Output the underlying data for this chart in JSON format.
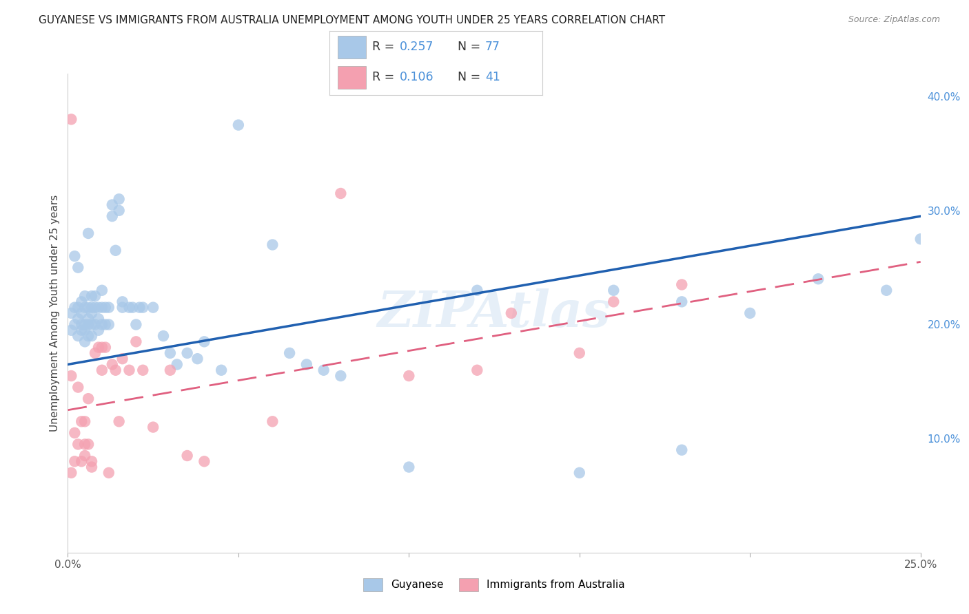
{
  "title": "GUYANESE VS IMMIGRANTS FROM AUSTRALIA UNEMPLOYMENT AMONG YOUTH UNDER 25 YEARS CORRELATION CHART",
  "source": "Source: ZipAtlas.com",
  "ylabel": "Unemployment Among Youth under 25 years",
  "xmin": 0.0,
  "xmax": 0.25,
  "ymin": 0.0,
  "ymax": 0.42,
  "legend_r1_val": "0.257",
  "legend_n1_val": "77",
  "legend_r2_val": "0.106",
  "legend_n2_val": "41",
  "blue_color": "#a8c8e8",
  "pink_color": "#f4a0b0",
  "blue_line_color": "#2060b0",
  "pink_line_color": "#e06080",
  "watermark": "ZIPAtlas",
  "background_color": "#ffffff",
  "grid_color": "#d8d8d8",
  "blue_intercept": 0.165,
  "blue_slope": 0.52,
  "pink_intercept": 0.125,
  "pink_slope": 0.52,
  "guyanese_x": [
    0.001,
    0.001,
    0.002,
    0.002,
    0.002,
    0.003,
    0.003,
    0.003,
    0.003,
    0.004,
    0.004,
    0.004,
    0.004,
    0.005,
    0.005,
    0.005,
    0.005,
    0.005,
    0.006,
    0.006,
    0.006,
    0.006,
    0.006,
    0.007,
    0.007,
    0.007,
    0.007,
    0.007,
    0.008,
    0.008,
    0.008,
    0.009,
    0.009,
    0.009,
    0.01,
    0.01,
    0.01,
    0.011,
    0.011,
    0.012,
    0.012,
    0.013,
    0.013,
    0.014,
    0.015,
    0.015,
    0.016,
    0.016,
    0.018,
    0.019,
    0.02,
    0.021,
    0.022,
    0.025,
    0.028,
    0.03,
    0.032,
    0.035,
    0.038,
    0.04,
    0.045,
    0.05,
    0.06,
    0.065,
    0.07,
    0.075,
    0.08,
    0.1,
    0.12,
    0.15,
    0.16,
    0.18,
    0.2,
    0.22,
    0.24,
    0.25,
    0.18
  ],
  "guyanese_y": [
    0.195,
    0.21,
    0.2,
    0.215,
    0.26,
    0.19,
    0.205,
    0.215,
    0.25,
    0.195,
    0.2,
    0.21,
    0.22,
    0.185,
    0.195,
    0.2,
    0.215,
    0.225,
    0.19,
    0.2,
    0.205,
    0.215,
    0.28,
    0.19,
    0.2,
    0.21,
    0.215,
    0.225,
    0.2,
    0.215,
    0.225,
    0.195,
    0.205,
    0.215,
    0.2,
    0.215,
    0.23,
    0.2,
    0.215,
    0.2,
    0.215,
    0.295,
    0.305,
    0.265,
    0.3,
    0.31,
    0.215,
    0.22,
    0.215,
    0.215,
    0.2,
    0.215,
    0.215,
    0.215,
    0.19,
    0.175,
    0.165,
    0.175,
    0.17,
    0.185,
    0.16,
    0.375,
    0.27,
    0.175,
    0.165,
    0.16,
    0.155,
    0.075,
    0.23,
    0.07,
    0.23,
    0.22,
    0.21,
    0.24,
    0.23,
    0.275,
    0.09
  ],
  "australia_x": [
    0.001,
    0.001,
    0.001,
    0.002,
    0.002,
    0.003,
    0.003,
    0.004,
    0.004,
    0.005,
    0.005,
    0.005,
    0.006,
    0.006,
    0.007,
    0.007,
    0.008,
    0.009,
    0.01,
    0.01,
    0.011,
    0.012,
    0.013,
    0.014,
    0.015,
    0.016,
    0.018,
    0.02,
    0.022,
    0.025,
    0.03,
    0.035,
    0.04,
    0.06,
    0.08,
    0.1,
    0.12,
    0.13,
    0.15,
    0.16,
    0.18
  ],
  "australia_y": [
    0.38,
    0.155,
    0.07,
    0.105,
    0.08,
    0.095,
    0.145,
    0.08,
    0.115,
    0.085,
    0.095,
    0.115,
    0.095,
    0.135,
    0.075,
    0.08,
    0.175,
    0.18,
    0.16,
    0.18,
    0.18,
    0.07,
    0.165,
    0.16,
    0.115,
    0.17,
    0.16,
    0.185,
    0.16,
    0.11,
    0.16,
    0.085,
    0.08,
    0.115,
    0.315,
    0.155,
    0.16,
    0.21,
    0.175,
    0.22,
    0.235
  ]
}
